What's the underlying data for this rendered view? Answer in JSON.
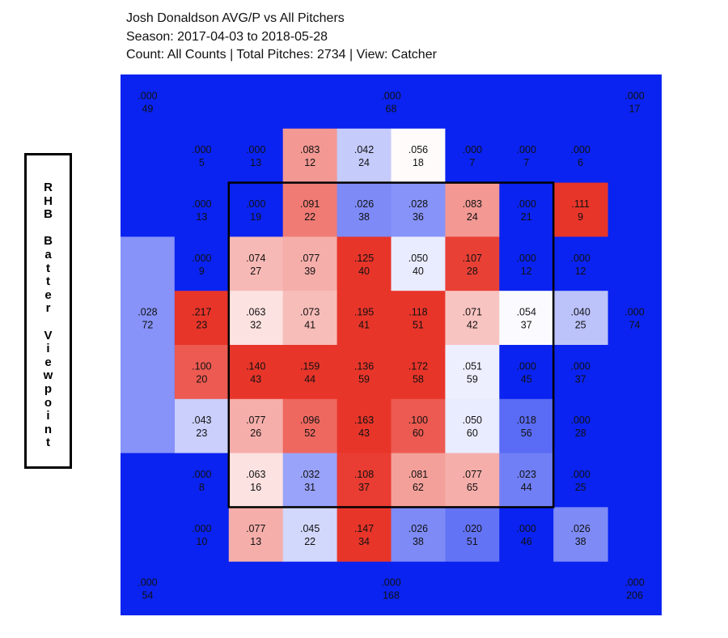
{
  "title": "Josh Donaldson AVG/P vs All Pitchers",
  "season": "Season: 2017-04-03 to 2018-05-28",
  "summary": "Count: All Counts | Total Pitches: 2734 | View: Catcher",
  "side_label": "RHB Batter Viewpoint",
  "colors": {
    "cold": "#0a23f0",
    "neutral": "#ffffff",
    "hot": "#e8352a",
    "zone_border": "#000000"
  },
  "chart_data": {
    "type": "heatmap",
    "metric": "AVG/P",
    "view": "Catcher",
    "count": "All Counts",
    "total_pitches": 2734,
    "color_scale": {
      "min": 0.0,
      "mid": 0.055,
      "max": 0.11
    },
    "corners": [
      {
        "name": "outer-top-left",
        "avg": ".000",
        "pitches": "49"
      },
      {
        "name": "outer-top-middle",
        "avg": ".000",
        "pitches": "68"
      },
      {
        "name": "outer-top-right",
        "avg": ".000",
        "pitches": "17"
      },
      {
        "name": "outer-left",
        "avg": ".028",
        "pitches": "72"
      },
      {
        "name": "outer-right",
        "avg": ".000",
        "pitches": "74"
      },
      {
        "name": "outer-bottom-left",
        "avg": ".000",
        "pitches": "54"
      },
      {
        "name": "outer-bottom-middle",
        "avg": ".000",
        "pitches": "168"
      },
      {
        "name": "outer-bottom-right",
        "avg": ".000",
        "pitches": "206"
      }
    ],
    "grid": [
      [
        {
          "avg": ".000",
          "pitches": "5"
        },
        {
          "avg": ".000",
          "pitches": "13"
        },
        {
          "avg": ".083",
          "pitches": "12"
        },
        {
          "avg": ".042",
          "pitches": "24"
        },
        {
          "avg": ".056",
          "pitches": "18"
        },
        {
          "avg": ".000",
          "pitches": "7"
        },
        {
          "avg": ".000",
          "pitches": "7"
        },
        {
          "avg": ".000",
          "pitches": "6"
        }
      ],
      [
        {
          "avg": ".000",
          "pitches": "13"
        },
        {
          "avg": ".000",
          "pitches": "19"
        },
        {
          "avg": ".091",
          "pitches": "22"
        },
        {
          "avg": ".026",
          "pitches": "38"
        },
        {
          "avg": ".028",
          "pitches": "36"
        },
        {
          "avg": ".083",
          "pitches": "24"
        },
        {
          "avg": ".000",
          "pitches": "21"
        },
        {
          "avg": ".111",
          "pitches": "9"
        }
      ],
      [
        {
          "avg": ".000",
          "pitches": "9"
        },
        {
          "avg": ".074",
          "pitches": "27"
        },
        {
          "avg": ".077",
          "pitches": "39"
        },
        {
          "avg": ".125",
          "pitches": "40"
        },
        {
          "avg": ".050",
          "pitches": "40"
        },
        {
          "avg": ".107",
          "pitches": "28"
        },
        {
          "avg": ".000",
          "pitches": "12"
        },
        {
          "avg": ".000",
          "pitches": "12"
        }
      ],
      [
        {
          "avg": ".217",
          "pitches": "23"
        },
        {
          "avg": ".063",
          "pitches": "32"
        },
        {
          "avg": ".073",
          "pitches": "41"
        },
        {
          "avg": ".195",
          "pitches": "41"
        },
        {
          "avg": ".118",
          "pitches": "51"
        },
        {
          "avg": ".071",
          "pitches": "42"
        },
        {
          "avg": ".054",
          "pitches": "37"
        },
        {
          "avg": ".040",
          "pitches": "25"
        }
      ],
      [
        {
          "avg": ".100",
          "pitches": "20"
        },
        {
          "avg": ".140",
          "pitches": "43"
        },
        {
          "avg": ".159",
          "pitches": "44"
        },
        {
          "avg": ".136",
          "pitches": "59"
        },
        {
          "avg": ".172",
          "pitches": "58"
        },
        {
          "avg": ".051",
          "pitches": "59"
        },
        {
          "avg": ".000",
          "pitches": "45"
        },
        {
          "avg": ".000",
          "pitches": "37"
        }
      ],
      [
        {
          "avg": ".043",
          "pitches": "23"
        },
        {
          "avg": ".077",
          "pitches": "26"
        },
        {
          "avg": ".096",
          "pitches": "52"
        },
        {
          "avg": ".163",
          "pitches": "43"
        },
        {
          "avg": ".100",
          "pitches": "60"
        },
        {
          "avg": ".050",
          "pitches": "60"
        },
        {
          "avg": ".018",
          "pitches": "56"
        },
        {
          "avg": ".000",
          "pitches": "28"
        }
      ],
      [
        {
          "avg": ".000",
          "pitches": "8"
        },
        {
          "avg": ".063",
          "pitches": "16"
        },
        {
          "avg": ".032",
          "pitches": "31"
        },
        {
          "avg": ".108",
          "pitches": "37"
        },
        {
          "avg": ".081",
          "pitches": "62"
        },
        {
          "avg": ".077",
          "pitches": "65"
        },
        {
          "avg": ".023",
          "pitches": "44"
        },
        {
          "avg": ".000",
          "pitches": "25"
        }
      ],
      [
        {
          "avg": ".000",
          "pitches": "10"
        },
        {
          "avg": ".077",
          "pitches": "13"
        },
        {
          "avg": ".045",
          "pitches": "22"
        },
        {
          "avg": ".147",
          "pitches": "34"
        },
        {
          "avg": ".026",
          "pitches": "38"
        },
        {
          "avg": ".020",
          "pitches": "51"
        },
        {
          "avg": ".000",
          "pitches": "46"
        },
        {
          "avg": ".026",
          "pitches": "38"
        }
      ]
    ]
  }
}
